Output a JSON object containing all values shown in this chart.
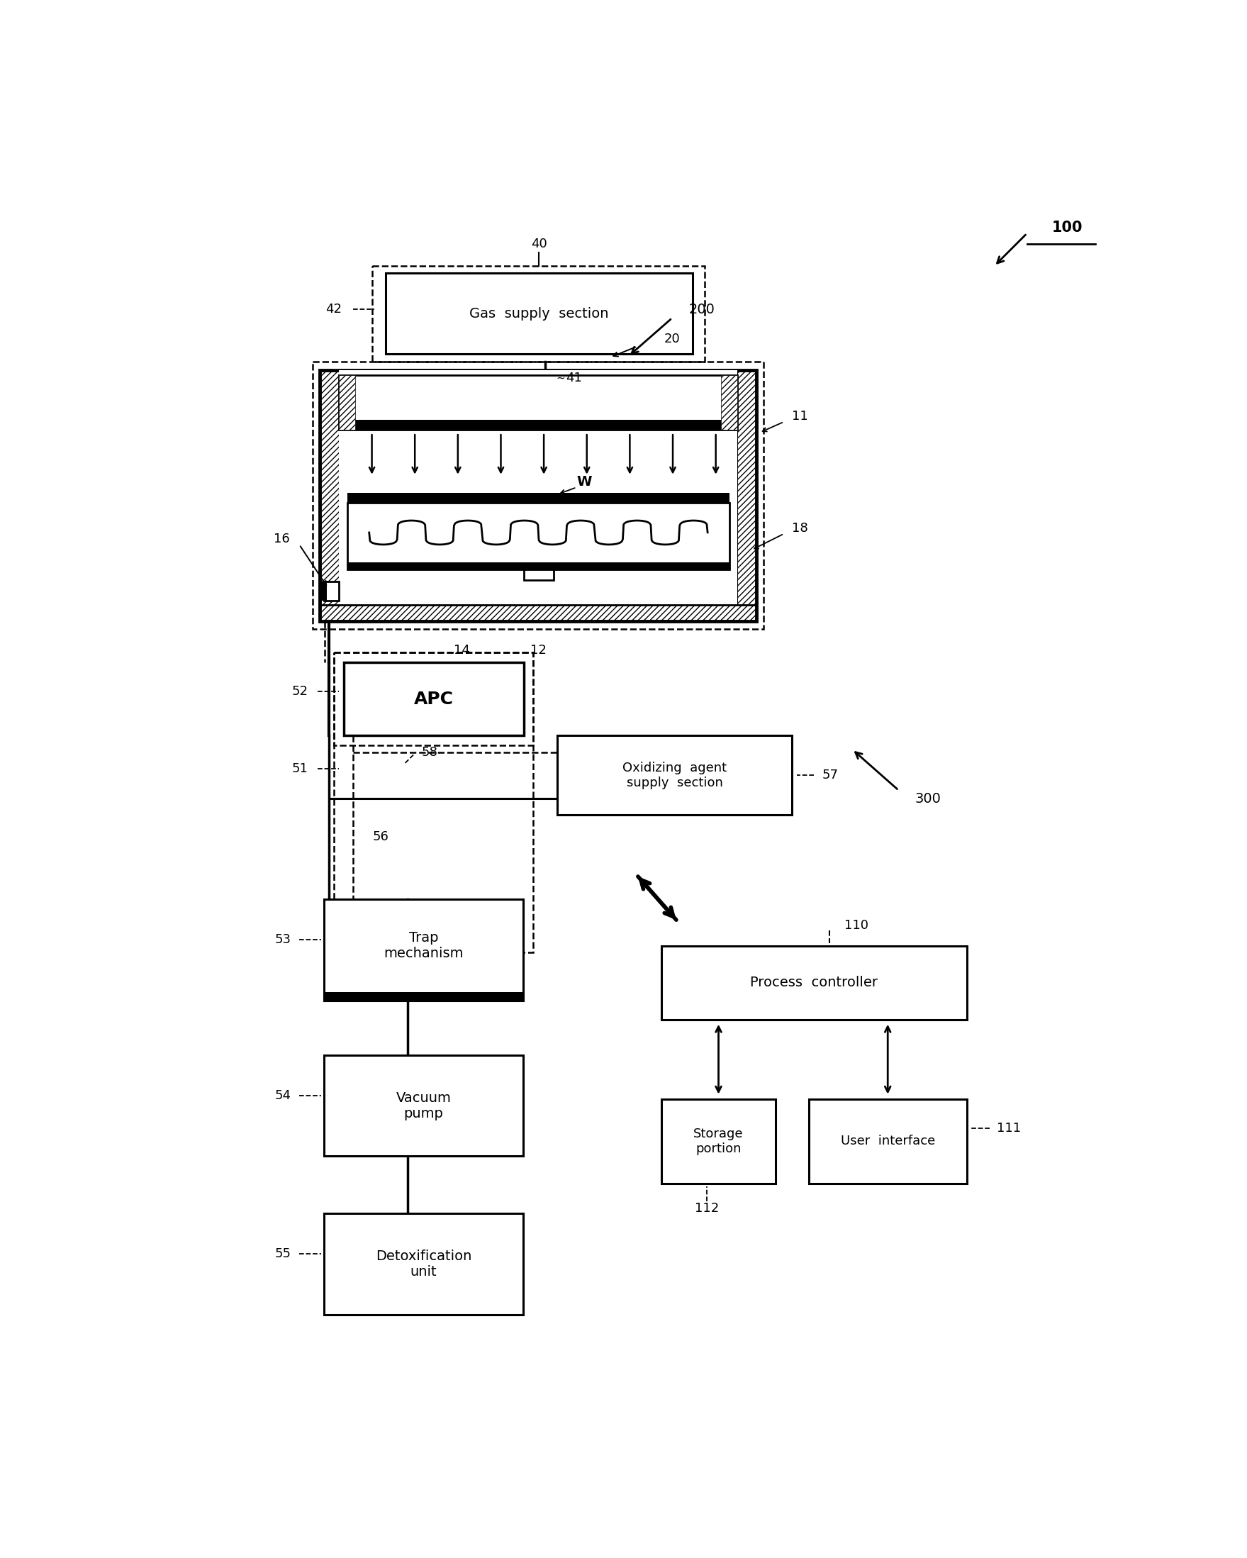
{
  "bg_color": "#ffffff",
  "lc": "#000000",
  "fig_w": 17.59,
  "fig_h": 21.97,
  "labels": {
    "gas_supply": "Gas  supply  section",
    "apc": "APC",
    "oxidizing": "Oxidizing  agent\nsupply  section",
    "trap": "Trap\nmechanism",
    "vacuum": "Vacuum\npump",
    "detox": "Detoxification\nunit",
    "process_ctrl": "Process  controller",
    "storage": "Storage\nportion",
    "user_if": "User  interface",
    "W": "W",
    "n16": "16",
    "n18": "18",
    "n14": "14",
    "n12": "12"
  },
  "ref_nums": {
    "n40": "40",
    "n42": "42",
    "n41": "41",
    "n20": "20",
    "n11": "11",
    "n52": "52",
    "n51": "51",
    "n58": "58",
    "n57": "57",
    "n56": "56",
    "n53": "53",
    "n54": "54",
    "n55": "55",
    "n110": "110",
    "n111": "111",
    "n112": "112",
    "n100": "100",
    "n200": "200",
    "n300": "300"
  }
}
